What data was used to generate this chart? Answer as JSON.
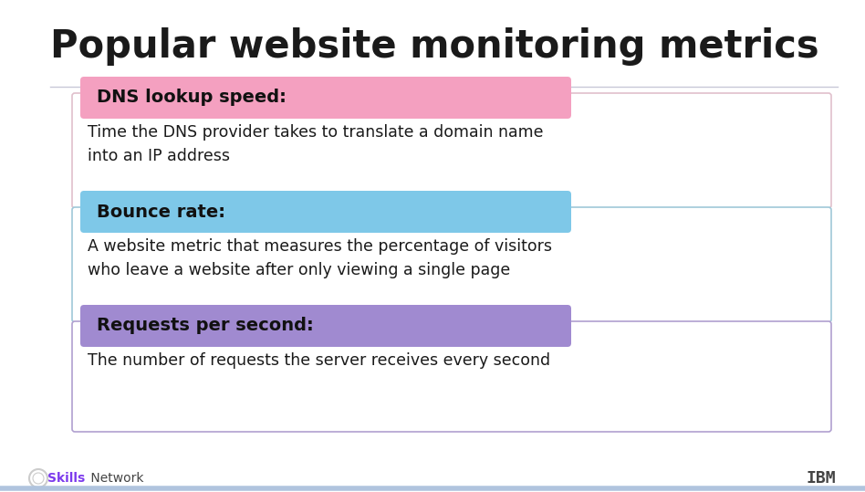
{
  "title": "Popular website monitoring metrics",
  "background_color": "#ffffff",
  "title_color": "#1a1a1a",
  "divider_color": "#c8c8d8",
  "items": [
    {
      "label": "DNS lookup speed:",
      "label_bg": "#f4a0c0",
      "box_border": "#e0c0cc",
      "box_bg": "#ffffff",
      "description": "Time the DNS provider takes to translate a domain name\ninto an IP address",
      "desc_color": "#1a1a1a"
    },
    {
      "label": "Bounce rate:",
      "label_bg": "#7ec8e8",
      "box_border": "#a0c8d8",
      "box_bg": "#ffffff",
      "description": "A website metric that measures the percentage of visitors\nwho leave a website after only viewing a single page",
      "desc_color": "#1a1a1a"
    },
    {
      "label": "Requests per second:",
      "label_bg": "#a08ad0",
      "box_border": "#b0a0d0",
      "box_bg": "#ffffff",
      "description": "The number of requests the server receives every second",
      "desc_color": "#1a1a1a"
    }
  ],
  "footer_bold_text": "Skills",
  "footer_normal_text": " Network",
  "footer_bold_color": "#7c3aed",
  "footer_normal_color": "#444444",
  "bottom_bar_color": "#b0c4de",
  "title_fontsize": 30,
  "label_fontsize": 14,
  "desc_fontsize": 12.5
}
